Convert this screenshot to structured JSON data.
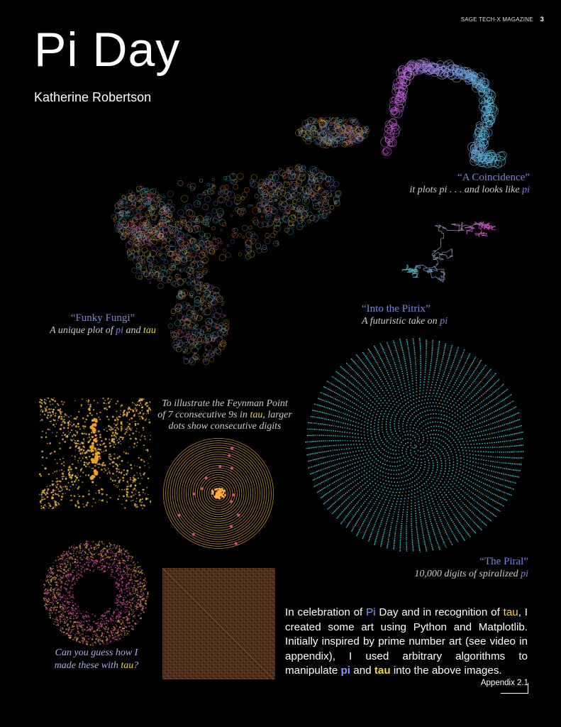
{
  "header": {
    "magazine": "SAGE TECH-X MAGAZINE",
    "page_number": "3"
  },
  "article": {
    "title": "Pi Day",
    "author": "Katherine Robertson"
  },
  "captions": {
    "coincidence": {
      "title": "“A Coincidence”",
      "pre": "it plots pi . . . and looks like ",
      "pi": "pi"
    },
    "pitrix": {
      "title": "“Into the Pitrix”",
      "pre": "A futuristic take on ",
      "pi": "pi"
    },
    "fungi": {
      "title": "“Funky Fungi”",
      "pre": "A unique plot of ",
      "pi": "pi",
      "mid": " and ",
      "tau": "tau"
    },
    "feynman": {
      "line1": "To illustrate the Feynman Point",
      "line2_pre": "of 7 cconsecutive 9s in ",
      "tau": "tau",
      "line2_post": ", larger",
      "line3": "dots show consecutive digits"
    },
    "piral": {
      "title": "“The Piral”",
      "pre": "10,000 digits of spiralized ",
      "pi": "pi"
    },
    "guess": {
      "line1": "Can you guess how I",
      "line2_pre": "made these with ",
      "tau": "tau",
      "line2_post": "?"
    }
  },
  "body": {
    "s1": "In celebration of ",
    "pi1": "Pi",
    "s2": " Day and in recognition of ",
    "tau1": "tau",
    "s3": ", I created some art using Python and Matplotlib. Initially inspired by prime number art (see video in appendix), I used arbitrary algorithms to manipulate ",
    "pi2": "pi",
    "s4": " and ",
    "tau2": "tau",
    "s5": " into the above images."
  },
  "appendix_link": "Appendix 2.1",
  "colors": {
    "pi": "#7a85d4",
    "tau": "#f2d43a",
    "background": "#000000"
  },
  "artworks": [
    {
      "name": "coincidence-art",
      "icon": "pi-shape-walk"
    },
    {
      "name": "fungi-art",
      "icon": "random-walk-cloud"
    },
    {
      "name": "pitrix-art",
      "icon": "rect-walk"
    },
    {
      "name": "piral-art",
      "icon": "spiral-dots"
    },
    {
      "name": "tau-hourglass-art",
      "icon": "hourglass-dots"
    },
    {
      "name": "tau-feynman-spiral-art",
      "icon": "spiral-rings"
    },
    {
      "name": "tau-ring-art",
      "icon": "ring-dots"
    },
    {
      "name": "tau-grid-art",
      "icon": "triangle-grid"
    }
  ]
}
